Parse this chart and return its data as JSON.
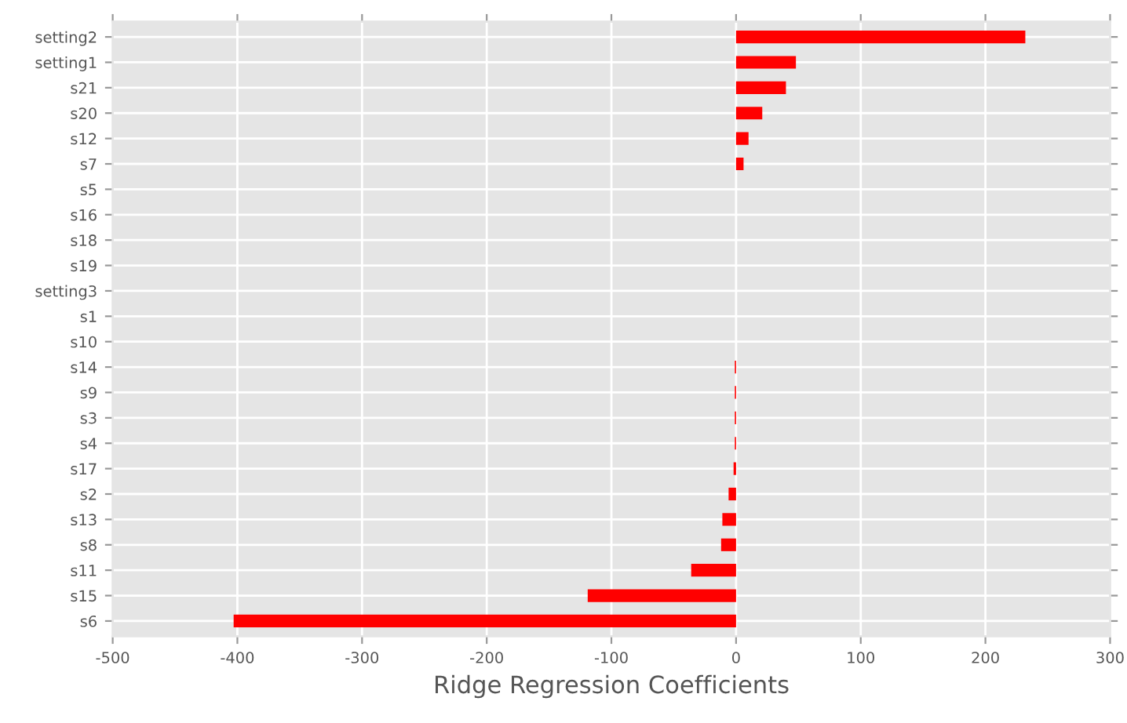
{
  "chart_data": {
    "type": "bar",
    "orientation": "horizontal",
    "xlabel": "Ridge Regression Coefficients",
    "categories": [
      "setting2",
      "setting1",
      "s21",
      "s20",
      "s12",
      "s7",
      "s5",
      "s16",
      "s18",
      "s19",
      "setting3",
      "s1",
      "s10",
      "s14",
      "s9",
      "s3",
      "s4",
      "s17",
      "s2",
      "s13",
      "s8",
      "s11",
      "s15",
      "s6"
    ],
    "values": [
      232,
      48,
      40,
      21,
      10,
      6,
      0,
      0,
      0,
      0,
      0,
      0,
      0,
      -1,
      -1,
      -1,
      -1,
      -2,
      -6,
      -11,
      -12,
      -36,
      -119,
      -403
    ],
    "color": "#ff0000",
    "xlim": [
      -500,
      300
    ],
    "xticks": [
      -500,
      -400,
      -300,
      -200,
      -100,
      0,
      100,
      200,
      300
    ],
    "grid": true
  }
}
